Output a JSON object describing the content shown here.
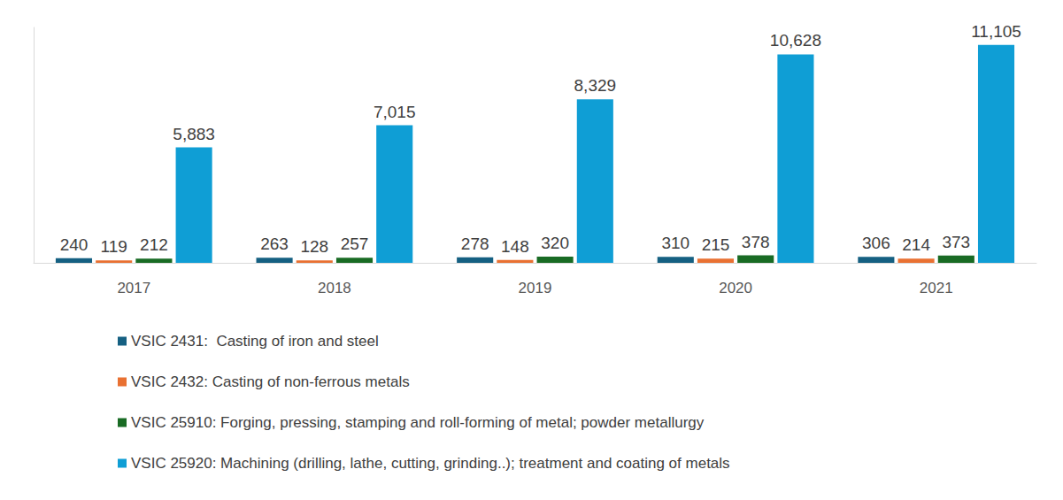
{
  "chart_data": {
    "type": "bar",
    "categories": [
      "2017",
      "2018",
      "2019",
      "2020",
      "2021"
    ],
    "series": [
      {
        "name": "VSIC 2431:  Casting of iron and steel",
        "color": "#156082",
        "values": [
          240,
          263,
          278,
          310,
          306
        ]
      },
      {
        "name": "VSIC 2432: Casting of non-ferrous metals",
        "color": "#E97132",
        "values": [
          119,
          128,
          148,
          215,
          214
        ]
      },
      {
        "name": "VSIC 25910: Forging, pressing, stamping and roll-forming of metal; powder metallurgy",
        "color": "#196B24",
        "values": [
          212,
          257,
          320,
          378,
          373
        ]
      },
      {
        "name": "VSIC 25920: Machining (drilling, lathe, cutting, grinding..); treatment and coating of metals",
        "color": "#0F9ED5",
        "values": [
          5883,
          7015,
          8329,
          10628,
          11105
        ],
        "value_labels": [
          "5,883",
          "7,015",
          "8,329",
          "10,628",
          "11,105"
        ]
      }
    ],
    "ylim": [
      0,
      12000
    ],
    "grid": false,
    "legend": "bottom",
    "data_labels": true,
    "tick_labels": "x"
  }
}
